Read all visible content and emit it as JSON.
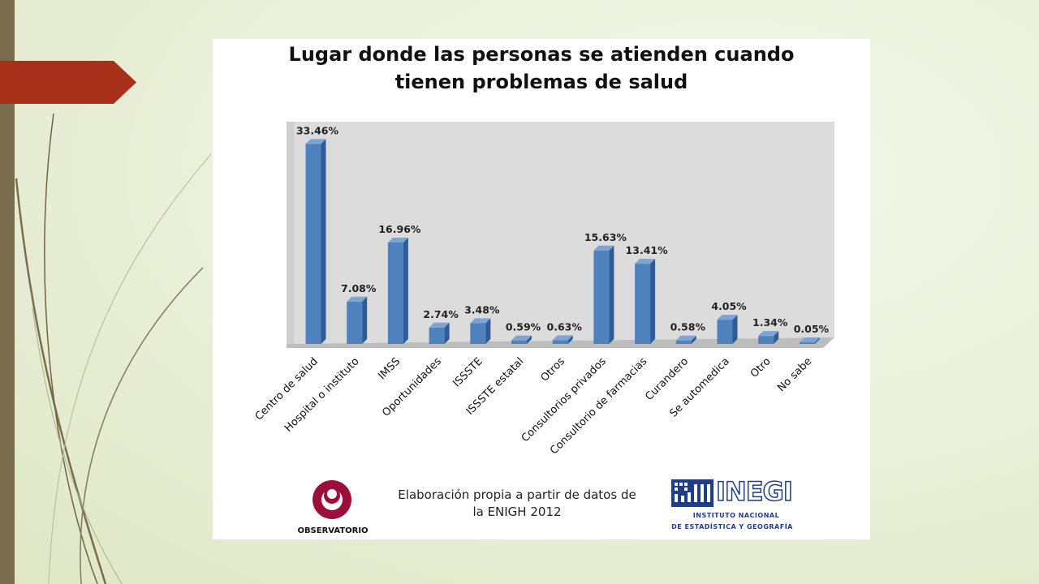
{
  "chart_data": {
    "type": "bar",
    "title_line1": "Lugar donde las personas se atienden cuando",
    "title_line2": "tienen problemas de salud",
    "categories": [
      "Centro de salud",
      "Hospital o instituto",
      "IMSS",
      "Oportunidades",
      "ISSSTE",
      "ISSSTE estatal",
      "Otros",
      "Consultorios privados",
      "Consultorio de farmacias",
      "Curandero",
      "Se automedica",
      "Otro",
      "No sabe"
    ],
    "values": [
      33.46,
      7.08,
      16.96,
      2.74,
      3.48,
      0.59,
      0.63,
      15.63,
      13.41,
      0.58,
      4.05,
      1.34,
      0.05
    ],
    "data_labels": [
      "33.46%",
      "7.08%",
      "16.96%",
      "2.74%",
      "3.48%",
      "0.59%",
      "0.63%",
      "15.63%",
      "13.41%",
      "0.58%",
      "4.05%",
      "1.34%",
      "0.05%"
    ],
    "ylim": [
      0,
      35
    ],
    "grid": false,
    "legend": "none",
    "bar_color": "#4f81bd"
  },
  "footer": {
    "line1": "Elaboración propia a partir de datos de",
    "line2": "la ENIGH 2012",
    "observatorio": "OBSERVATORIO",
    "inegi": "INEGI",
    "inegi_sub1": "INSTITUTO NACIONAL",
    "inegi_sub2": "DE ESTADÍSTICA Y GEOGRAFÍA"
  },
  "colors": {
    "accent_red": "#a8301a",
    "side_bar": "#7a6d4f"
  }
}
